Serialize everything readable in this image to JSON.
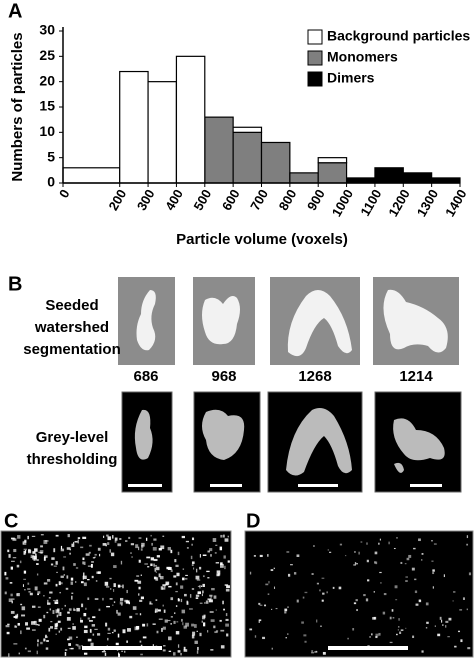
{
  "chart_data": {
    "type": "histogram",
    "ylabel": "Numbers of particles",
    "xlabel": "Particle volume (voxels)",
    "bins": [
      0,
      200,
      300,
      400,
      500,
      600,
      700,
      800,
      900,
      1000,
      1100,
      1200,
      1300,
      1400
    ],
    "series": [
      {
        "name": "Dimers",
        "color": "#000000",
        "values": [
          0,
          0,
          0,
          0,
          0,
          0,
          0,
          0,
          0,
          1,
          3,
          2,
          1
        ]
      },
      {
        "name": "Monomers",
        "color": "#7f7f7f",
        "values": [
          0,
          0,
          0,
          0,
          13,
          10,
          8,
          2,
          4,
          0,
          0,
          0,
          0
        ]
      },
      {
        "name": "Background particles",
        "color": "#ffffff",
        "values": [
          3,
          22,
          20,
          25,
          0,
          1,
          0,
          0,
          1,
          0,
          0,
          0,
          0
        ]
      }
    ],
    "legend_order": [
      2,
      1,
      0
    ],
    "xlim": [
      0,
      1400
    ],
    "xticks": [
      0,
      200,
      300,
      400,
      500,
      600,
      700,
      800,
      900,
      1000,
      1100,
      1200,
      1300,
      1400
    ],
    "ylim": [
      0,
      30
    ],
    "yticks": [
      0,
      5,
      10,
      15,
      20,
      25,
      30
    ]
  },
  "panel_labels": [
    "A",
    "B",
    "C",
    "D"
  ],
  "panel_b": {
    "row_labels": [
      [
        "Seeded",
        "watershed",
        "segmentation"
      ],
      [
        "Grey-level",
        "thresholding"
      ]
    ],
    "volumes": [
      686,
      968,
      1268,
      1214
    ]
  }
}
